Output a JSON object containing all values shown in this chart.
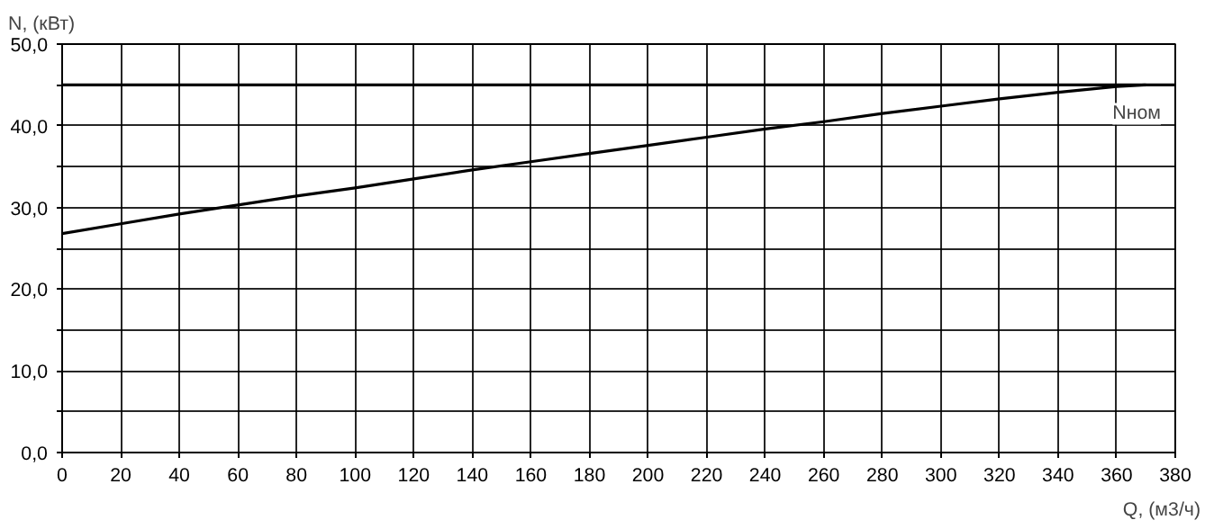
{
  "chart_data": {
    "type": "line",
    "xlabel": "Q, (м3/ч)",
    "ylabel": "N, (кВт)",
    "x": [
      0,
      20,
      40,
      60,
      80,
      100,
      120,
      140,
      160,
      180,
      200,
      220,
      240,
      260,
      280,
      300,
      320,
      340,
      360,
      370
    ],
    "series": [
      {
        "color": "#000000",
        "values": [
          26.8,
          28.0,
          29.2,
          30.3,
          31.4,
          32.4,
          33.5,
          34.6,
          35.6,
          36.6,
          37.6,
          38.6,
          39.6,
          40.5,
          41.5,
          42.4,
          43.3,
          44.1,
          44.8,
          45.0
        ]
      }
    ],
    "xlim": [
      0,
      380
    ],
    "xticks": [
      0,
      20,
      40,
      60,
      80,
      100,
      120,
      140,
      160,
      180,
      200,
      220,
      240,
      260,
      280,
      300,
      320,
      340,
      360,
      380
    ],
    "ylim": [
      0,
      50
    ],
    "yticks": [
      {
        "value": 0,
        "label": "0,0"
      },
      {
        "value": 5,
        "label": null
      },
      {
        "value": 10,
        "label": "10,0"
      },
      {
        "value": 15,
        "label": null
      },
      {
        "value": 20,
        "label": "20,0"
      },
      {
        "value": 25,
        "label": null
      },
      {
        "value": 30,
        "label": "30,0"
      },
      {
        "value": 35,
        "label": null
      },
      {
        "value": 40,
        "label": "40,0"
      },
      {
        "value": 45,
        "label": null
      },
      {
        "value": 50,
        "label": "50,0"
      }
    ],
    "ref_lines": [
      {
        "axis": "y",
        "value": 45,
        "label": "Nном",
        "color": "#000000"
      }
    ],
    "grid": true,
    "marker": "none",
    "line_style": "solid"
  }
}
